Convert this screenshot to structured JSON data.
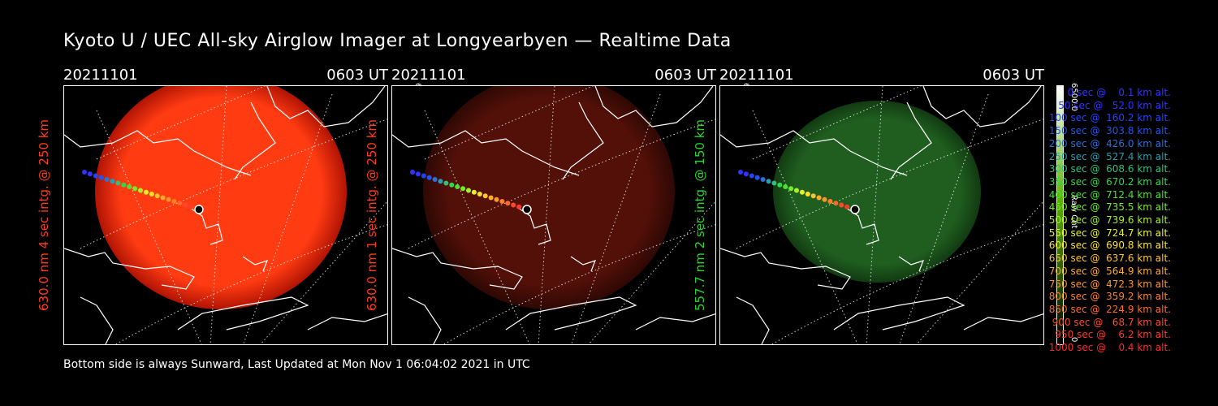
{
  "title": "Kyoto U / UEC All-sky Airglow Imager at Longyearbyen — Realtime Data",
  "panels": [
    {
      "date": "20211101",
      "time": "0603 UT",
      "ylabel": "630.0 nm 4 sec intg. @ 250 km",
      "label_color": "#ff3b1e",
      "colorbar_max": "6500.0",
      "colorbar_min": "0",
      "colorbar_unit": "Raw Cnt",
      "colors": {
        "center": "#ff3b12",
        "edge": "#b01404",
        "bar_top": "#ffffff",
        "bar_mid": "#ff4a10",
        "bar_bottom": "#000000"
      }
    },
    {
      "date": "20211101",
      "time": "0603 UT",
      "ylabel": "630.0 nm 1 sec intg. @ 250 km",
      "label_color": "#ff3b1e",
      "colorbar_max": "6500.0",
      "colorbar_min": "0",
      "colorbar_unit": "Raw Cnt",
      "colors": {
        "center": "#521008",
        "edge": "#2e0804",
        "bar_top": "#ffffff",
        "bar_mid": "#ff4a10",
        "bar_bottom": "#000000"
      }
    },
    {
      "date": "20211101",
      "time": "0603 UT",
      "ylabel": "557.7 nm 2 sec intg. @ 150 km",
      "label_color": "#2bd42b",
      "colorbar_max": "6500.0",
      "colorbar_min": "0",
      "colorbar_unit": "Raw Cnt",
      "colors": {
        "center": "#1f5e1f",
        "edge": "#123a12",
        "bar_top": "#ffffff",
        "bar_mid": "#58b000",
        "bar_bottom": "#000000"
      }
    }
  ],
  "legend": [
    {
      "text": "   0 sec @    0.1 km alt.",
      "color": "#3333ff"
    },
    {
      "text": "  50 sec @   52.0 km alt.",
      "color": "#3333ff"
    },
    {
      "text": " 100 sec @  160.2 km alt.",
      "color": "#2244ff"
    },
    {
      "text": " 150 sec @  303.8 km alt.",
      "color": "#2255ee"
    },
    {
      "text": " 200 sec @  426.0 km alt.",
      "color": "#2f6fd8"
    },
    {
      "text": " 250 sec @  527.4 km alt.",
      "color": "#2a9db0"
    },
    {
      "text": " 300 sec @  608.6 km alt.",
      "color": "#2fc080"
    },
    {
      "text": " 350 sec @  670.2 km alt.",
      "color": "#33d64a"
    },
    {
      "text": " 400 sec @  712.4 km alt.",
      "color": "#4be033"
    },
    {
      "text": " 450 sec @  735.5 km alt.",
      "color": "#73ea2a"
    },
    {
      "text": " 500 sec @  739.6 km alt.",
      "color": "#a8f02a"
    },
    {
      "text": " 550 sec @  724.7 km alt.",
      "color": "#e6f02a"
    },
    {
      "text": " 600 sec @  690.8 km alt.",
      "color": "#ffe22a"
    },
    {
      "text": " 650 sec @  637.6 km alt.",
      "color": "#ffc32a"
    },
    {
      "text": " 700 sec @  564.9 km alt.",
      "color": "#ffaa2a"
    },
    {
      "text": " 750 sec @  472.3 km alt.",
      "color": "#ff962a"
    },
    {
      "text": " 800 sec @  359.2 km alt.",
      "color": "#ff822a"
    },
    {
      "text": " 850 sec @  224.9 km alt.",
      "color": "#ff6a2a"
    },
    {
      "text": " 900 sec @   68.7 km alt.",
      "color": "#ff4a2a"
    },
    {
      "text": " 950 sec @    6.2 km alt.",
      "color": "#ff3a2a"
    },
    {
      "text": "1000 sec @    0.4 km alt.",
      "color": "#ff2a2a"
    }
  ],
  "footer": "Bottom side is always Sunward, Last Updated at Mon Nov  1 06:04:02 2021 in UTC"
}
